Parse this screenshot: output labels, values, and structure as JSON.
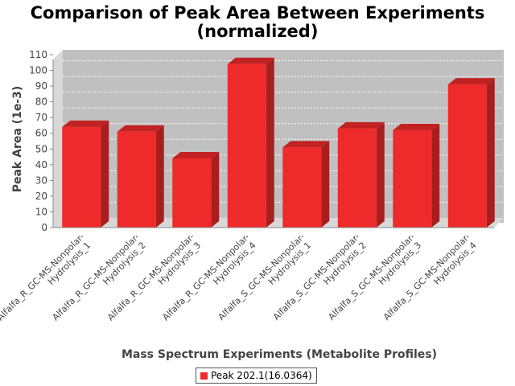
{
  "chart_data": {
    "type": "bar",
    "title": "Comparison of Peak Area Between Experiments",
    "subtitle": "(normalized)",
    "xlabel": "Mass Spectrum Experiments (Metabolite Profiles)",
    "ylabel": "Peak Area (1e-3)",
    "ylim": [
      0,
      110
    ],
    "yticks": [
      0,
      10,
      20,
      30,
      40,
      50,
      60,
      70,
      80,
      90,
      100,
      110
    ],
    "grid": true,
    "legend_position": "bottom",
    "categories": [
      [
        "Alfalfa_R_GC-MS-Nonpolar-",
        "Hydrolysis_1"
      ],
      [
        "Alfalfa_R_GC-MS-Nonpolar-",
        "Hydrolysis_2"
      ],
      [
        "Alfalfa_R_GC-MS-Nonpolar-",
        "Hydrolysis_3"
      ],
      [
        "Alfalfa_R_GC-MS-Nonpolar-",
        "Hydrolysis_4"
      ],
      [
        "Alfalfa_S_GC-MS-Nonpolar-",
        "Hydrolysis_1"
      ],
      [
        "Alfalfa_S_GC-MS-Nonpolar-",
        "Hydrolysis_2"
      ],
      [
        "Alfalfa_S_GC-MS-Nonpolar-",
        "Hydrolysis_3"
      ],
      [
        "Alfalfa_S_GC-MS-Nonpolar-",
        "Hydrolysis_4"
      ]
    ],
    "series": [
      {
        "name": "Peak 202.1(16.0364)",
        "color": "#ee2a2a",
        "values": [
          64,
          61,
          44,
          104,
          51,
          63,
          62,
          91
        ]
      }
    ]
  }
}
